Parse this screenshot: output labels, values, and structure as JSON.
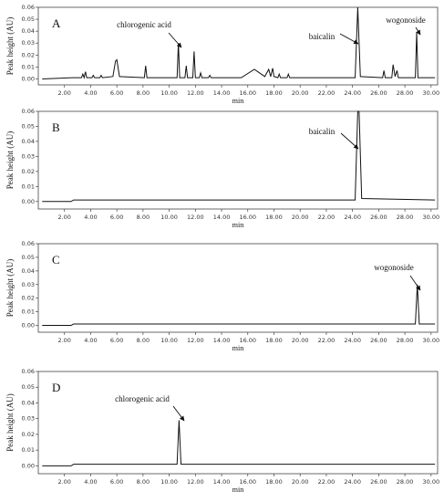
{
  "chart_data": [
    {
      "type": "line",
      "panel_label": "A",
      "y_label": "Peak height (AU)",
      "x_label": "min",
      "color": "#111111",
      "annotations": [
        "chlorogenic acid",
        "baicalin",
        "wogonoside"
      ],
      "x": [
        0.3,
        2.6,
        3.3,
        3.4,
        3.5,
        3.6,
        3.7,
        4.1,
        4.2,
        4.3,
        4.7,
        4.8,
        4.9,
        5.7,
        5.9,
        6.0,
        6.2,
        8.1,
        8.2,
        8.3,
        10.6,
        10.7,
        10.8,
        11.2,
        11.3,
        11.4,
        11.8,
        11.9,
        12.0,
        12.3,
        12.4,
        12.5,
        13.0,
        13.1,
        13.2,
        15.5,
        16.5,
        17.3,
        17.6,
        17.75,
        17.9,
        18.0,
        18.3,
        18.4,
        18.5,
        19.0,
        19.1,
        19.2,
        24.2,
        24.4,
        24.6,
        26.3,
        26.4,
        26.5,
        27.0,
        27.1,
        27.25,
        27.4,
        27.5,
        28.8,
        28.9,
        29.0,
        30.3
      ],
      "values": [
        0,
        0.001,
        0.001,
        0.004,
        0.001,
        0.006,
        0.001,
        0.001,
        0.003,
        0.001,
        0.001,
        0.003,
        0.001,
        0.002,
        0.015,
        0.016,
        0.002,
        0.001,
        0.011,
        0.001,
        0.001,
        0.03,
        0.001,
        0.001,
        0.011,
        0.001,
        0.001,
        0.023,
        0.001,
        0.001,
        0.005,
        0.001,
        0.001,
        0.003,
        0.001,
        0.001,
        0.008,
        0.002,
        0.008,
        0.002,
        0.009,
        0.002,
        0.001,
        0.004,
        0.001,
        0.001,
        0.004,
        0.001,
        0.001,
        0.06,
        0.002,
        0.001,
        0.007,
        0.001,
        0.001,
        0.012,
        0.002,
        0.007,
        0.001,
        0.001,
        0.039,
        0.001,
        0.001
      ],
      "xlim": [
        0,
        30.5
      ],
      "ylim": [
        -0.005,
        0.06
      ],
      "xticks": [
        {
          "value": 2,
          "label": "2.00"
        },
        {
          "value": 4,
          "label": "4.00"
        },
        {
          "value": 6,
          "label": "6.00"
        },
        {
          "value": 8,
          "label": "8.00"
        },
        {
          "value": 10,
          "label": "10.00"
        },
        {
          "value": 12,
          "label": "12.00"
        },
        {
          "value": 14,
          "label": "14.00"
        },
        {
          "value": 16,
          "label": "16.00"
        },
        {
          "value": 18,
          "label": "18.00"
        },
        {
          "value": 20,
          "label": "20.00"
        },
        {
          "value": 22,
          "label": "22.00"
        },
        {
          "value": 24,
          "label": "24.00"
        },
        {
          "value": 26,
          "label": "26.00"
        },
        {
          "value": 28,
          "label": "28.00"
        },
        {
          "value": 30,
          "label": "30.00"
        }
      ],
      "yticks": [
        {
          "value": 0,
          "label": "0.00"
        },
        0.01,
        0.02,
        0.03,
        0.04,
        0.05,
        0.06
      ]
    },
    {
      "type": "line",
      "panel_label": "B",
      "y_label": "Peak height (AU)",
      "x_label": "min",
      "color": "#111111",
      "annotations": [
        "baicalin"
      ],
      "x": [
        0.3,
        2.5,
        2.7,
        24.2,
        24.4,
        24.5,
        24.7,
        30.3
      ],
      "values": [
        0,
        0,
        0.001,
        0.001,
        0.06,
        0.06,
        0.002,
        0.001
      ],
      "xlim": [
        0,
        30.5
      ],
      "ylim": [
        -0.005,
        0.06
      ],
      "xticks": [
        {
          "value": 2,
          "label": "2.00"
        },
        {
          "value": 4,
          "label": "4.00"
        },
        {
          "value": 6,
          "label": "6.00"
        },
        {
          "value": 8,
          "label": "8.00"
        },
        {
          "value": 10,
          "label": "10.00"
        },
        {
          "value": 12,
          "label": "12.00"
        },
        {
          "value": 14,
          "label": "14.00"
        },
        {
          "value": 16,
          "label": "16.00"
        },
        {
          "value": 18,
          "label": "18.00"
        },
        {
          "value": 20,
          "label": "20.00"
        },
        {
          "value": 22,
          "label": "22.00"
        },
        {
          "value": 24,
          "label": "24.00"
        },
        {
          "value": 26,
          "label": "26.00"
        },
        {
          "value": 28,
          "label": "28.00"
        },
        {
          "value": 30,
          "label": "30.00"
        }
      ],
      "yticks": [
        {
          "value": 0,
          "label": "0.00"
        },
        0.01,
        0.02,
        0.03,
        0.04,
        0.05,
        0.06
      ]
    },
    {
      "type": "line",
      "panel_label": "C",
      "y_label": "Peak height (AU)",
      "x_label": "min",
      "color": "#111111",
      "annotations": [
        "wogonoside"
      ],
      "x": [
        0.3,
        2.5,
        2.7,
        28.8,
        28.95,
        29.1,
        30.3
      ],
      "values": [
        0,
        0,
        0.001,
        0.001,
        0.03,
        0.001,
        0.001
      ],
      "xlim": [
        0,
        30.5
      ],
      "ylim": [
        -0.005,
        0.06
      ],
      "xticks": [
        {
          "value": 2,
          "label": "2.00"
        },
        {
          "value": 4,
          "label": "4.00"
        },
        {
          "value": 6,
          "label": "6.00"
        },
        {
          "value": 8,
          "label": "8.00"
        },
        {
          "value": 10,
          "label": "10.00"
        },
        {
          "value": 12,
          "label": "12.00"
        },
        {
          "value": 14,
          "label": "14.00"
        },
        {
          "value": 16,
          "label": "16.00"
        },
        {
          "value": 18,
          "label": "18.00"
        },
        {
          "value": 20,
          "label": "20.00"
        },
        {
          "value": 22,
          "label": "22.00"
        },
        {
          "value": 24,
          "label": "24.00"
        },
        {
          "value": 26,
          "label": "26.00"
        },
        {
          "value": 28,
          "label": "28.00"
        },
        {
          "value": 30,
          "label": "30.00"
        }
      ],
      "yticks": [
        {
          "value": 0,
          "label": "0.00"
        },
        0.01,
        0.02,
        0.03,
        0.04,
        0.05,
        0.06
      ]
    },
    {
      "type": "line",
      "panel_label": "D",
      "y_label": "Peak height (AU)",
      "x_label": "min",
      "color": "#111111",
      "annotations": [
        "chlorogenic acid"
      ],
      "x": [
        0.3,
        2.5,
        2.7,
        10.6,
        10.75,
        10.9,
        30.3
      ],
      "values": [
        0,
        0,
        0.001,
        0.001,
        0.029,
        0.001,
        0.001
      ],
      "xlim": [
        0,
        30.5
      ],
      "ylim": [
        -0.005,
        0.06
      ],
      "xticks": [
        {
          "value": 2,
          "label": "2.00"
        },
        {
          "value": 4,
          "label": "4.00"
        },
        {
          "value": 6,
          "label": "6.00"
        },
        {
          "value": 8,
          "label": "8.00"
        },
        {
          "value": 10,
          "label": "10.00"
        },
        {
          "value": 12,
          "label": "12.00"
        },
        {
          "value": 14,
          "label": "14.00"
        },
        {
          "value": 16,
          "label": "16.00"
        },
        {
          "value": 18,
          "label": "18.00"
        },
        {
          "value": 20,
          "label": "20.00"
        },
        {
          "value": 22,
          "label": "22.00"
        },
        {
          "value": 24,
          "label": "24.00"
        },
        {
          "value": 26,
          "label": "26.00"
        },
        {
          "value": 28,
          "label": "28.00"
        },
        {
          "value": 30,
          "label": "30.00"
        }
      ],
      "yticks": [
        {
          "value": 0,
          "label": "0.00"
        },
        0.01,
        0.02,
        0.03,
        0.04,
        0.05,
        0.06
      ]
    }
  ]
}
